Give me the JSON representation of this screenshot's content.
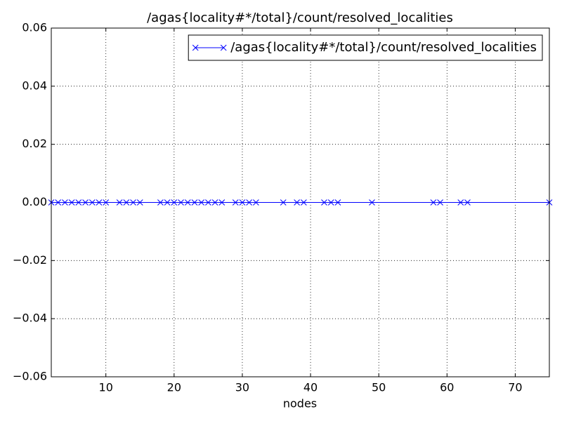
{
  "chart_data": {
    "type": "line",
    "title": "/agas{locality#*/total}/count/resolved_localities",
    "x_label": "nodes",
    "series": [
      {
        "name": "/agas{locality#*/total}/count/resolved_localities",
        "color": "#0000ff",
        "marker": "x",
        "x": [
          2,
          3,
          4,
          5,
          6,
          7,
          8,
          9,
          10,
          12,
          13,
          14,
          15,
          18,
          19,
          20,
          21,
          22,
          23,
          24,
          25,
          26,
          27,
          29,
          30,
          31,
          32,
          36,
          38,
          39,
          42,
          43,
          44,
          49,
          58,
          59,
          62,
          63,
          75
        ],
        "values": [
          0,
          0,
          0,
          0,
          0,
          0,
          0,
          0,
          0,
          0,
          0,
          0,
          0,
          0,
          0,
          0,
          0,
          0,
          0,
          0,
          0,
          0,
          0,
          0,
          0,
          0,
          0,
          0,
          0,
          0,
          0,
          0,
          0,
          0,
          0,
          0,
          0,
          0,
          0
        ]
      }
    ],
    "xlim": [
      2,
      75
    ],
    "xticks": [
      10,
      20,
      30,
      40,
      50,
      60,
      70
    ],
    "ylim": [
      -0.06,
      0.06
    ],
    "yticks": [
      {
        "value": -0.06,
        "label": "−0.06"
      },
      {
        "value": -0.04,
        "label": "−0.04"
      },
      {
        "value": -0.02,
        "label": "−0.02"
      },
      {
        "value": 0,
        "label": "0.00"
      },
      {
        "value": 0.02,
        "label": "0.02"
      },
      {
        "value": 0.04,
        "label": "0.04"
      },
      {
        "value": 0.06,
        "label": "0.06"
      }
    ],
    "grid": true,
    "legend": "upper right"
  }
}
